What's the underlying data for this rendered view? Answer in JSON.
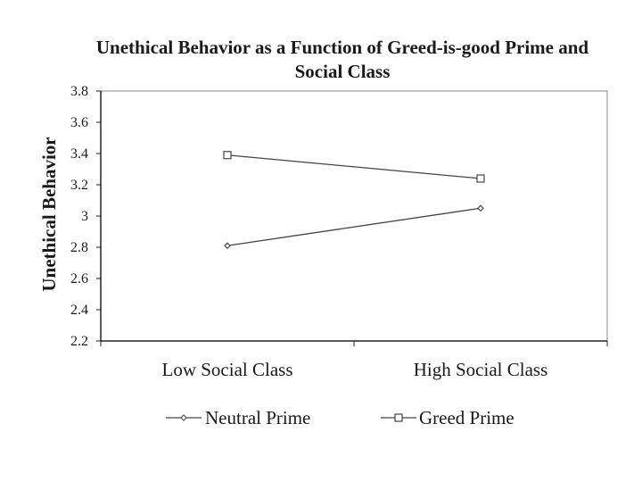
{
  "chart_data": {
    "type": "line",
    "title_lines": [
      "Unethical Behavior as a Function of Greed-is-good Prime and",
      "Social Class"
    ],
    "xlabel": "",
    "ylabel": "Unethical Behavior",
    "categories": [
      "Low Social Class",
      "High Social Class"
    ],
    "ylim": [
      2.2,
      3.8
    ],
    "yticks": [
      "2.2",
      "2.4",
      "2.6",
      "2.8",
      "3",
      "3.2",
      "3.4",
      "3.6",
      "3.8"
    ],
    "grid": false,
    "legend_position": "bottom",
    "series": [
      {
        "name": "Neutral Prime",
        "marker": "diamond",
        "values": [
          2.81,
          3.05
        ],
        "color": "#444444"
      },
      {
        "name": "Greed Prime",
        "marker": "square",
        "values": [
          3.39,
          3.24
        ],
        "color": "#444444"
      }
    ]
  }
}
